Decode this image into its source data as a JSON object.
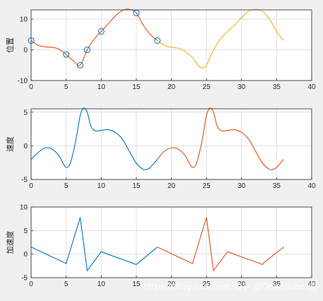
{
  "chart_data": [
    {
      "type": "line",
      "ylabel": "位置",
      "xlim": [
        0,
        40
      ],
      "ylim": [
        -10,
        13
      ],
      "xticks": [
        "0",
        "5",
        "10",
        "15",
        "20",
        "25",
        "30",
        "35",
        "40"
      ],
      "yticks": [
        "-10",
        "0",
        "10"
      ],
      "grid": true,
      "series": [
        {
          "color": "#d95319",
          "x": [
            0,
            1,
            2,
            3,
            4,
            5,
            6,
            7,
            8,
            9,
            10,
            11,
            12,
            13,
            14,
            15,
            16,
            17,
            18
          ],
          "y": [
            3,
            1.5,
            1,
            0.8,
            0.2,
            -1.5,
            -3.5,
            -5,
            0,
            3.5,
            6,
            8.5,
            11,
            12.8,
            13.2,
            12,
            8,
            5,
            3
          ]
        },
        {
          "color": "#edb120",
          "x": [
            18,
            19,
            20,
            21,
            22,
            23,
            24,
            24.5,
            25,
            26,
            27,
            28,
            29,
            30,
            31,
            32,
            33,
            34,
            35,
            36
          ],
          "y": [
            3,
            1.5,
            0.8,
            0.5,
            -0.5,
            -2.5,
            -5.5,
            -5.8,
            -5,
            0,
            3.5,
            6,
            8,
            10.5,
            12.5,
            13.2,
            12.5,
            10,
            6,
            3
          ]
        },
        {
          "type": "scatter",
          "marker": "circle",
          "color": "#0072bd",
          "x": [
            0,
            5,
            7,
            8,
            10,
            15,
            18
          ],
          "y": [
            3,
            -1.5,
            -5,
            0,
            6,
            12,
            3
          ]
        }
      ]
    },
    {
      "type": "line",
      "ylabel": "速度",
      "xlim": [
        0,
        40
      ],
      "ylim": [
        -5,
        5.5
      ],
      "xticks": [
        "0",
        "5",
        "10",
        "15",
        "20",
        "25",
        "30",
        "35",
        "40"
      ],
      "yticks": [
        "-5",
        "0",
        "5"
      ],
      "grid": true,
      "series": [
        {
          "color": "#0072bd",
          "x": [
            0,
            1,
            2,
            3,
            4,
            4.5,
            5,
            5.5,
            6,
            6.5,
            7,
            7.5,
            8,
            8.5,
            9,
            9.5,
            10,
            11,
            12,
            13,
            14,
            15,
            16,
            16.5,
            17,
            18
          ],
          "y": [
            -2,
            -1,
            -0.3,
            -0.5,
            -1.5,
            -2.5,
            -3.2,
            -2.8,
            -1,
            1.5,
            4.5,
            5.6,
            5,
            3,
            2.3,
            2.2,
            2.3,
            2.4,
            2,
            1,
            -0.8,
            -2.6,
            -3.5,
            -3.5,
            -3.2,
            -2
          ]
        },
        {
          "color": "#d95319",
          "x": [
            18,
            19,
            20,
            21,
            22,
            22.5,
            23,
            23.5,
            24,
            24.5,
            25,
            25.5,
            26,
            26.5,
            27,
            27.5,
            28,
            29,
            30,
            31,
            32,
            33,
            34,
            34.5,
            35,
            36
          ],
          "y": [
            -2,
            -0.8,
            -0.3,
            -0.5,
            -1.5,
            -2.5,
            -3.2,
            -2.8,
            -1,
            1.5,
            4.5,
            5.6,
            5,
            3,
            2.3,
            2.2,
            2.3,
            2.4,
            2,
            1,
            -0.8,
            -2.6,
            -3.5,
            -3.5,
            -3.2,
            -2
          ]
        }
      ]
    },
    {
      "type": "line",
      "ylabel": "加速度",
      "xlim": [
        0,
        40
      ],
      "ylim": [
        -5,
        10
      ],
      "xticks": [
        "0",
        "5",
        "10",
        "15",
        "20",
        "25",
        "30",
        "35",
        "40"
      ],
      "yticks": [
        "-5",
        "0",
        "5",
        "10"
      ],
      "grid": true,
      "series": [
        {
          "color": "#0072bd",
          "x": [
            0,
            5,
            7,
            8,
            10,
            15,
            18
          ],
          "y": [
            1.5,
            -2,
            7.8,
            -3.5,
            0.5,
            -2.2,
            1.5
          ]
        },
        {
          "color": "#d95319",
          "x": [
            18,
            23,
            25,
            26,
            28,
            33,
            33.2,
            36
          ],
          "y": [
            1.5,
            -2,
            7.8,
            -3.5,
            0.5,
            -2.2,
            -1.8,
            1.5
          ]
        }
      ]
    }
  ],
  "watermark": "https://blog.csdn.net 知乎 @OpenRobot君"
}
